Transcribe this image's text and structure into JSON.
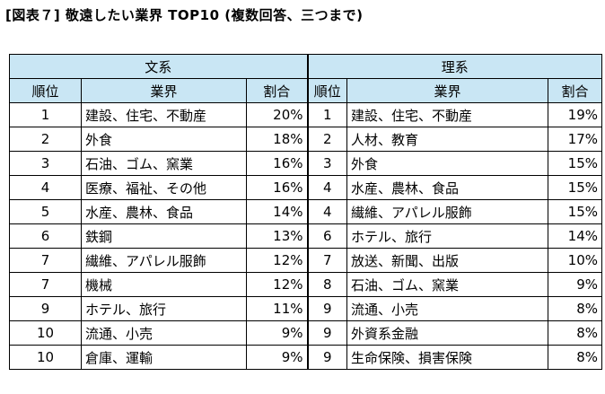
{
  "title": "[図表７] 敬遠したい業界 TOP10 (複数回答、三つまで)",
  "groups": {
    "bunkei": "文系",
    "rikei": "理系"
  },
  "headers": {
    "rank": "順位",
    "industry": "業界",
    "ratio": "割合"
  },
  "rows": [
    {
      "b_rank": "1",
      "b_ind": "建設、住宅、不動産",
      "b_pct": "20%",
      "r_rank": "1",
      "r_ind": "建設、住宅、不動産",
      "r_pct": "19%"
    },
    {
      "b_rank": "2",
      "b_ind": "外食",
      "b_pct": "18%",
      "r_rank": "2",
      "r_ind": "人材、教育",
      "r_pct": "17%"
    },
    {
      "b_rank": "3",
      "b_ind": "石油、ゴム、窯業",
      "b_pct": "16%",
      "r_rank": "3",
      "r_ind": "外食",
      "r_pct": "15%"
    },
    {
      "b_rank": "4",
      "b_ind": "医療、福祉、その他",
      "b_pct": "16%",
      "r_rank": "4",
      "r_ind": "水産、農林、食品",
      "r_pct": "15%"
    },
    {
      "b_rank": "5",
      "b_ind": "水産、農林、食品",
      "b_pct": "14%",
      "r_rank": "4",
      "r_ind": "繊維、アパレル服飾",
      "r_pct": "15%"
    },
    {
      "b_rank": "6",
      "b_ind": "鉄鋼",
      "b_pct": "13%",
      "r_rank": "6",
      "r_ind": "ホテル、旅行",
      "r_pct": "14%"
    },
    {
      "b_rank": "7",
      "b_ind": "繊維、アパレル服飾",
      "b_pct": "12%",
      "r_rank": "7",
      "r_ind": "放送、新聞、出版",
      "r_pct": "10%"
    },
    {
      "b_rank": "7",
      "b_ind": "機械",
      "b_pct": "12%",
      "r_rank": "8",
      "r_ind": "石油、ゴム、窯業",
      "r_pct": "9%"
    },
    {
      "b_rank": "9",
      "b_ind": "ホテル、旅行",
      "b_pct": "11%",
      "r_rank": "9",
      "r_ind": "流通、小売",
      "r_pct": "8%"
    },
    {
      "b_rank": "10",
      "b_ind": "流通、小売",
      "b_pct": "9%",
      "r_rank": "9",
      "r_ind": "外資系金融",
      "r_pct": "8%"
    },
    {
      "b_rank": "10",
      "b_ind": "倉庫、運輸",
      "b_pct": "9%",
      "r_rank": "9",
      "r_ind": "生命保険、損害保険",
      "r_pct": "8%"
    }
  ],
  "colors": {
    "header_bg": "#c9e6f4",
    "border": "#000000"
  }
}
